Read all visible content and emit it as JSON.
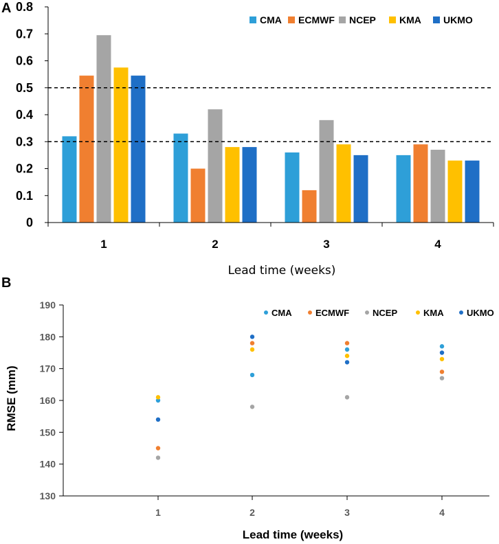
{
  "panels": {
    "a": "A",
    "b": "B"
  },
  "chart_data": [
    {
      "type": "bar",
      "panel": "A",
      "title": "",
      "xlabel": "Lead time (weeks)",
      "ylabel": "",
      "categories": [
        "1",
        "2",
        "3",
        "4"
      ],
      "ylim": [
        0,
        0.8
      ],
      "yticks": [
        "0",
        "0.1",
        "0.2",
        "0.3",
        "0.4",
        "0.5",
        "0.6",
        "0.7",
        "0.8"
      ],
      "reference_lines": [
        0.3,
        0.5
      ],
      "legend_position": "top-right",
      "series": [
        {
          "name": "CMA",
          "color": "#2e9fd8",
          "values": [
            0.32,
            0.33,
            0.26,
            0.25
          ]
        },
        {
          "name": "ECMWF",
          "color": "#f07f30",
          "values": [
            0.545,
            0.2,
            0.12,
            0.29
          ]
        },
        {
          "name": "NCEP",
          "color": "#a5a5a5",
          "values": [
            0.695,
            0.42,
            0.38,
            0.27
          ]
        },
        {
          "name": "KMA",
          "color": "#ffc000",
          "values": [
            0.575,
            0.28,
            0.29,
            0.23
          ]
        },
        {
          "name": "UKMO",
          "color": "#1f6fc6",
          "values": [
            0.545,
            0.28,
            0.25,
            0.23
          ]
        }
      ]
    },
    {
      "type": "scatter",
      "panel": "B",
      "title": "",
      "xlabel": "Lead time (weeks)",
      "ylabel": "RMSE (mm)",
      "categories": [
        "1",
        "2",
        "3",
        "4"
      ],
      "ylim": [
        130,
        190
      ],
      "yticks": [
        "130",
        "140",
        "150",
        "160",
        "170",
        "180",
        "190"
      ],
      "legend_position": "top-right",
      "series": [
        {
          "name": "CMA",
          "color": "#2e9fd8",
          "values": [
            160,
            168,
            176,
            177
          ]
        },
        {
          "name": "ECMWF",
          "color": "#f07f30",
          "values": [
            145,
            178,
            178,
            169
          ]
        },
        {
          "name": "NCEP",
          "color": "#a5a5a5",
          "values": [
            142,
            158,
            161,
            167
          ]
        },
        {
          "name": "KMA",
          "color": "#ffc000",
          "values": [
            161,
            176,
            174,
            173
          ]
        },
        {
          "name": "UKMO",
          "color": "#1f6fc6",
          "values": [
            154,
            180,
            172,
            175
          ]
        }
      ]
    }
  ]
}
